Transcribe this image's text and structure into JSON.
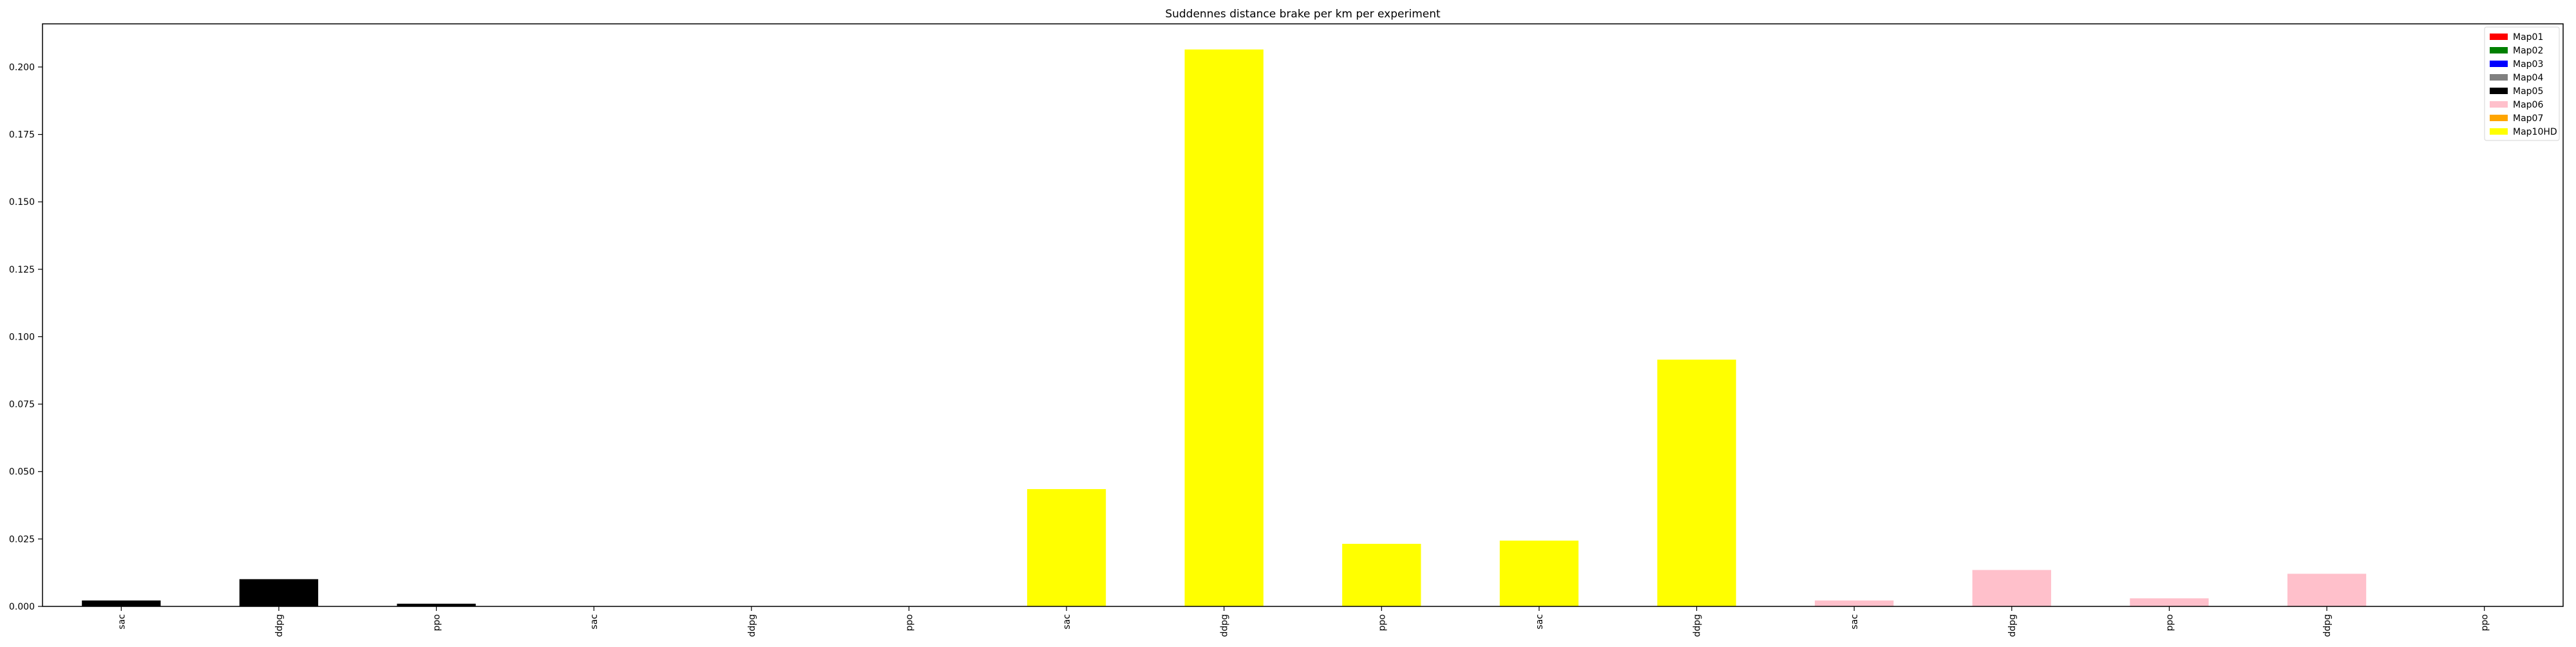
{
  "chart_data": {
    "type": "bar",
    "title": "Suddennes distance brake per km per experiment",
    "xlabel": "",
    "ylabel": "",
    "ylim": [
      0,
      0.216
    ],
    "yticks": [
      0.0,
      0.025,
      0.05,
      0.075,
      0.1,
      0.125,
      0.15,
      0.175,
      0.2
    ],
    "ytick_labels": [
      "0.000",
      "0.025",
      "0.050",
      "0.075",
      "0.100",
      "0.125",
      "0.150",
      "0.175",
      "0.200"
    ],
    "grid": false,
    "legend_position": "top-right",
    "categories": [
      "sac",
      "ddpg",
      "ppo",
      "sac",
      "ddpg",
      "ppo",
      "sac",
      "ddpg",
      "ppo",
      "sac",
      "ddpg",
      "sac",
      "ddpg",
      "ppo",
      "ddpg",
      "ppo"
    ],
    "values": [
      0.0022,
      0.0101,
      0.001,
      0.0,
      0.0,
      0.0,
      0.0435,
      0.2065,
      0.0232,
      0.0244,
      0.0915,
      0.0022,
      0.0135,
      0.003,
      0.0121,
      0.0
    ],
    "bar_colors": [
      "#000000",
      "#000000",
      "#000000",
      "#000000",
      "#000000",
      "#000000",
      "#ffff00",
      "#ffff00",
      "#ffff00",
      "#ffff00",
      "#ffff00",
      "#ffc0cb",
      "#ffc0cb",
      "#ffc0cb",
      "#ffc0cb",
      "#ffc0cb"
    ],
    "legend": [
      {
        "label": "Map01",
        "color": "#ff0000"
      },
      {
        "label": "Map02",
        "color": "#008000"
      },
      {
        "label": "Map03",
        "color": "#0000ff"
      },
      {
        "label": "Map04",
        "color": "#808080"
      },
      {
        "label": "Map05",
        "color": "#000000"
      },
      {
        "label": "Map06",
        "color": "#ffc0cb"
      },
      {
        "label": "Map07",
        "color": "#ffa500"
      },
      {
        "label": "Map10HD",
        "color": "#ffff00"
      }
    ]
  }
}
